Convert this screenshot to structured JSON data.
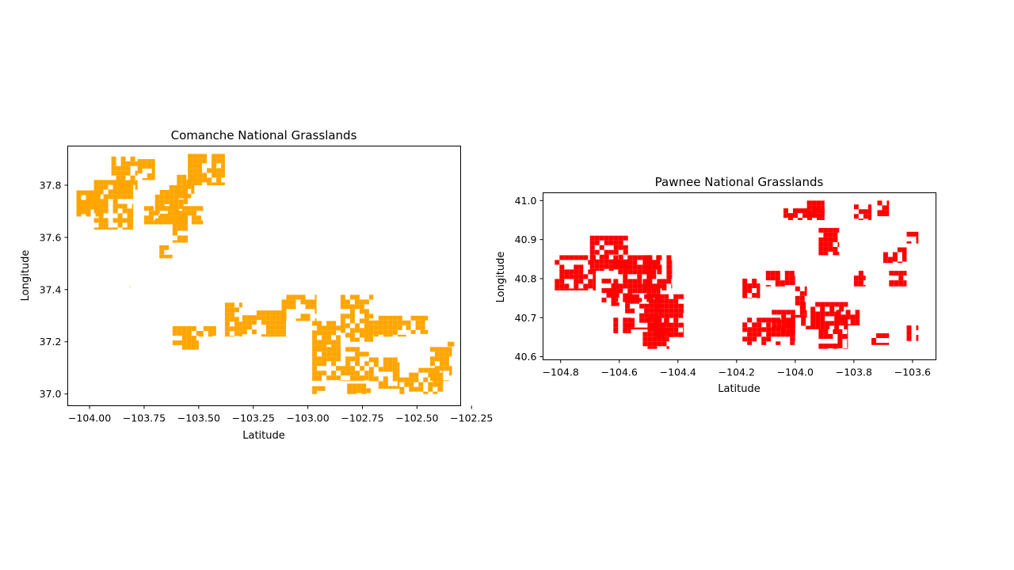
{
  "chart_data": [
    {
      "type": "map",
      "title": "Comanche National Grasslands",
      "xlabel": "Latitude",
      "ylabel": "Longitude",
      "xlim": [
        -104.1,
        -102.3
      ],
      "ylim": [
        36.955,
        37.95
      ],
      "xticks": [
        -104.0,
        -103.75,
        -103.5,
        -103.25,
        -103.0,
        -102.75,
        -102.5,
        -102.25
      ],
      "xtick_labels": [
        "−104.00",
        "−103.75",
        "−103.50",
        "−103.25",
        "−103.00",
        "−102.75",
        "−102.50",
        "−102.25"
      ],
      "yticks": [
        37.0,
        37.2,
        37.4,
        37.6,
        37.8
      ],
      "ytick_labels": [
        "37.0",
        "37.2",
        "37.4",
        "37.6",
        "37.8"
      ],
      "fill_color": "#ffa500",
      "regions": [
        [
          -104.06,
          37.78,
          -103.95,
          37.68
        ],
        [
          -103.98,
          37.82,
          -103.8,
          37.63
        ],
        [
          -103.9,
          37.91,
          -103.78,
          37.78
        ],
        [
          -103.78,
          37.9,
          -103.7,
          37.82
        ],
        [
          -103.75,
          37.72,
          -103.48,
          37.65
        ],
        [
          -103.7,
          37.8,
          -103.55,
          37.66
        ],
        [
          -103.55,
          37.92,
          -103.38,
          37.8
        ],
        [
          -103.6,
          37.84,
          -103.52,
          37.75
        ],
        [
          -103.62,
          37.68,
          -103.55,
          37.58
        ],
        [
          -103.68,
          37.57,
          -103.62,
          37.52
        ],
        [
          -103.84,
          37.43,
          -103.81,
          37.41
        ],
        [
          -103.62,
          37.26,
          -103.5,
          37.17
        ],
        [
          -103.5,
          37.26,
          -103.42,
          37.22
        ],
        [
          -103.38,
          37.35,
          -103.3,
          37.22
        ],
        [
          -103.3,
          37.32,
          -103.1,
          37.22
        ],
        [
          -103.12,
          37.38,
          -102.96,
          37.28
        ],
        [
          -102.98,
          37.28,
          -102.85,
          37.18
        ],
        [
          -102.85,
          37.38,
          -102.7,
          37.2
        ],
        [
          -102.72,
          37.3,
          -102.55,
          37.22
        ],
        [
          -102.55,
          37.3,
          -102.45,
          37.23
        ],
        [
          -102.98,
          37.18,
          -102.72,
          37.05
        ],
        [
          -102.72,
          37.14,
          -102.58,
          37.02
        ],
        [
          -102.58,
          37.1,
          -102.38,
          37.0
        ],
        [
          -102.82,
          37.04,
          -102.7,
          37.0
        ],
        [
          -102.98,
          37.03,
          -102.92,
          37.0
        ],
        [
          -102.44,
          37.18,
          -102.34,
          37.05
        ],
        [
          -102.36,
          37.2,
          -102.33,
          37.17
        ]
      ]
    },
    {
      "type": "map",
      "title": "Pawnee National Grasslands",
      "xlabel": "Latitude",
      "ylabel": "Longitude",
      "xlim": [
        -104.86,
        -103.52
      ],
      "ylim": [
        40.592,
        41.02
      ],
      "xticks": [
        -104.8,
        -104.6,
        -104.4,
        -104.2,
        -104.0,
        -103.8,
        -103.6
      ],
      "xtick_labels": [
        "−104.8",
        "−104.6",
        "−104.4",
        "−104.2",
        "−104.0",
        "−103.8",
        "−103.6"
      ],
      "yticks": [
        40.6,
        40.7,
        40.8,
        40.9,
        41.0
      ],
      "ytick_labels": [
        "40.6",
        "40.7",
        "40.8",
        "40.9",
        "41.0"
      ],
      "fill_color": "#ff0000",
      "regions": [
        [
          -104.82,
          40.86,
          -104.68,
          40.77
        ],
        [
          -104.7,
          40.91,
          -104.57,
          40.82
        ],
        [
          -104.62,
          40.86,
          -104.46,
          40.74
        ],
        [
          -104.52,
          40.86,
          -104.42,
          40.77
        ],
        [
          -104.66,
          40.8,
          -104.6,
          40.73
        ],
        [
          -104.58,
          40.76,
          -104.46,
          40.67
        ],
        [
          -104.48,
          40.76,
          -104.38,
          40.65
        ],
        [
          -104.52,
          40.7,
          -104.43,
          40.62
        ],
        [
          -104.62,
          40.7,
          -104.56,
          40.66
        ],
        [
          -104.18,
          40.8,
          -104.12,
          40.75
        ],
        [
          -104.1,
          40.82,
          -104.0,
          40.78
        ],
        [
          -104.18,
          40.7,
          -104.0,
          40.63
        ],
        [
          -104.08,
          40.72,
          -104.0,
          40.66
        ],
        [
          -104.0,
          40.78,
          -103.96,
          40.7
        ],
        [
          -103.98,
          40.74,
          -103.82,
          40.67
        ],
        [
          -103.92,
          40.67,
          -103.82,
          40.62
        ],
        [
          -103.86,
          40.72,
          -103.78,
          40.68
        ],
        [
          -103.92,
          40.93,
          -103.85,
          40.86
        ],
        [
          -104.04,
          40.98,
          -103.9,
          40.95
        ],
        [
          -103.96,
          41.0,
          -103.9,
          40.96
        ],
        [
          -103.8,
          40.99,
          -103.74,
          40.95
        ],
        [
          -103.72,
          41.0,
          -103.68,
          40.96
        ],
        [
          -103.7,
          40.88,
          -103.62,
          40.84
        ],
        [
          -103.62,
          40.92,
          -103.58,
          40.89
        ],
        [
          -103.68,
          40.82,
          -103.62,
          40.78
        ],
        [
          -103.74,
          40.66,
          -103.68,
          40.63
        ],
        [
          -103.62,
          40.68,
          -103.58,
          40.64
        ],
        [
          -103.8,
          40.82,
          -103.76,
          40.78
        ]
      ]
    }
  ]
}
